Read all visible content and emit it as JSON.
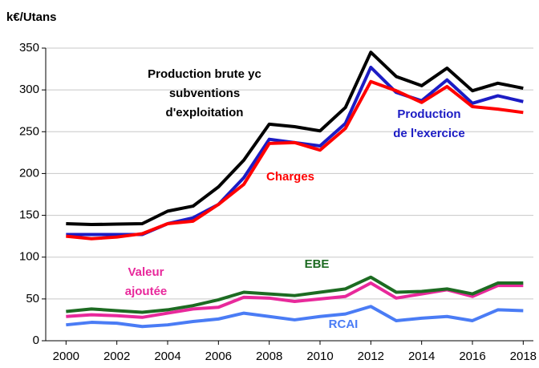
{
  "chart_data": {
    "type": "line",
    "y_axis_label": "k€/Utans",
    "x": [
      2000,
      2001,
      2002,
      2003,
      2004,
      2005,
      2006,
      2007,
      2008,
      2009,
      2010,
      2011,
      2012,
      2013,
      2014,
      2015,
      2016,
      2017,
      2018
    ],
    "xlim": [
      1999.2,
      2018.4
    ],
    "xticks": [
      2000,
      2002,
      2004,
      2006,
      2008,
      2010,
      2012,
      2014,
      2016,
      2018
    ],
    "ylim": [
      0,
      350
    ],
    "yticks": [
      0,
      50,
      100,
      150,
      200,
      250,
      300,
      350
    ],
    "grid": true,
    "series": [
      {
        "name": "RCAI",
        "color": "#4a7cf5",
        "values": [
          19,
          22,
          21,
          17,
          19,
          23,
          26,
          33,
          29,
          25,
          29,
          32,
          41,
          24,
          27,
          29,
          24,
          37,
          36
        ]
      },
      {
        "name": "Valeur ajoutée",
        "color": "#e8299b",
        "values": [
          29,
          31,
          30,
          28,
          33,
          38,
          40,
          52,
          51,
          47,
          50,
          53,
          69,
          51,
          56,
          61,
          53,
          66,
          66
        ]
      },
      {
        "name": "EBE",
        "color": "#1d6b22",
        "values": [
          35,
          38,
          36,
          34,
          37,
          42,
          49,
          58,
          56,
          54,
          58,
          62,
          76,
          58,
          59,
          62,
          56,
          69,
          69
        ]
      },
      {
        "name": "Production de l'exercice",
        "color": "#1c1cc4",
        "values": [
          127,
          127,
          127,
          127,
          140,
          147,
          163,
          195,
          241,
          237,
          233,
          260,
          327,
          297,
          287,
          312,
          284,
          293,
          286
        ]
      },
      {
        "name": "Charges",
        "color": "#ff0000",
        "values": [
          125,
          122,
          124,
          128,
          140,
          143,
          163,
          187,
          236,
          237,
          228,
          254,
          310,
          299,
          285,
          304,
          280,
          277,
          273
        ]
      },
      {
        "name": "Production brute yc subventions d'exploitation",
        "color": "#000000",
        "values": [
          140,
          139,
          139.5,
          140,
          155,
          161,
          184,
          216,
          259,
          256,
          251,
          279,
          345,
          316,
          305,
          326,
          299,
          308,
          302
        ]
      }
    ]
  }
}
